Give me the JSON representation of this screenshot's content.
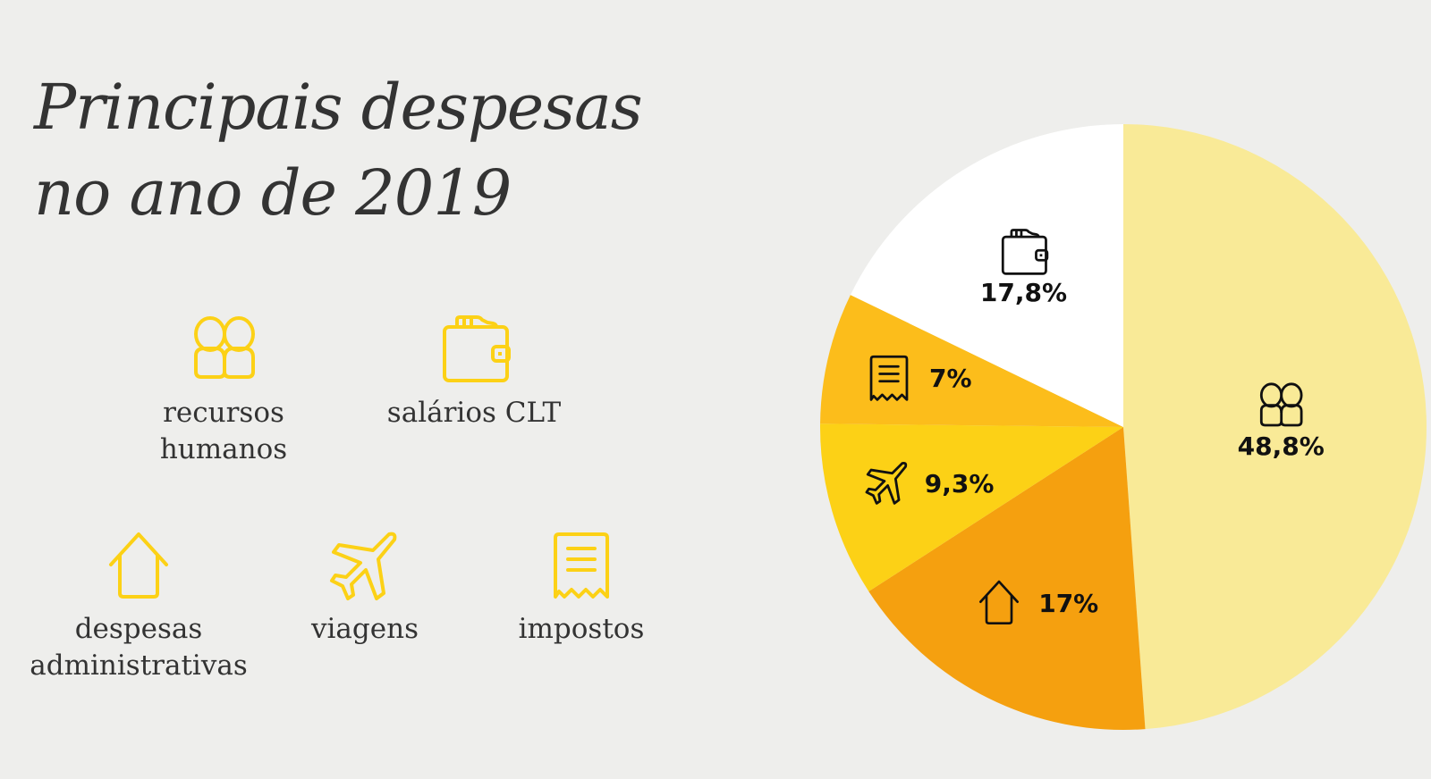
{
  "title": {
    "line1": "Principais despesas",
    "line2": "no ano de 2019"
  },
  "legend": [
    {
      "id": "recursos-humanos",
      "icon": "people-icon",
      "label_lines": [
        "recursos",
        "humanos"
      ]
    },
    {
      "id": "salarios-clt",
      "icon": "wallet-icon",
      "label_lines": [
        "salários CLT"
      ]
    },
    {
      "id": "despesas-administrativas",
      "icon": "house-icon",
      "label_lines": [
        "despesas",
        "administrativas"
      ]
    },
    {
      "id": "viagens",
      "icon": "airplane-icon",
      "label_lines": [
        "viagens"
      ]
    },
    {
      "id": "impostos",
      "icon": "receipt-icon",
      "label_lines": [
        "impostos"
      ]
    }
  ],
  "colors": {
    "background": "#EEEEEC",
    "legend_icon": "#FCD116",
    "title_text": "#333333",
    "pie_icon": "#111111"
  },
  "chart_data": {
    "type": "pie",
    "title": "Principais despesas no ano de 2019",
    "start": "12 o'clock",
    "direction": "clockwise",
    "slices": [
      {
        "name": "recursos humanos",
        "value": 48.8,
        "label": "48,8%",
        "icon": "people-icon",
        "color": "#F9EA97"
      },
      {
        "name": "despesas administrativas",
        "value": 17.0,
        "label": "17%",
        "icon": "house-icon",
        "color": "#F5A00F"
      },
      {
        "name": "viagens",
        "value": 9.3,
        "label": "9,3%",
        "icon": "airplane-icon",
        "color": "#FCD116"
      },
      {
        "name": "impostos",
        "value": 7.0,
        "label": "7%",
        "icon": "receipt-icon",
        "color": "#FCBD1B"
      },
      {
        "name": "salários CLT",
        "value": 17.8,
        "label": "17,8%",
        "icon": "wallet-icon",
        "color": "#FFFFFF"
      }
    ],
    "legend": "left",
    "units": "%"
  }
}
